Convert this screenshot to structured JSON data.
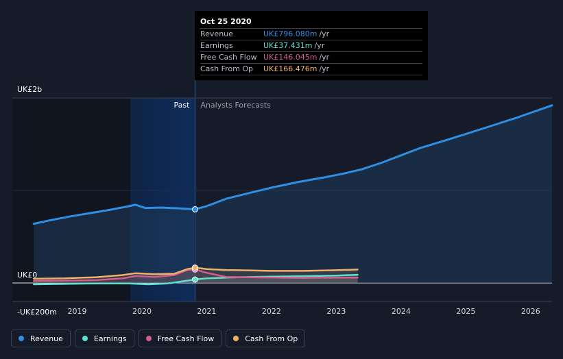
{
  "tooltip": {
    "date": "Oct 25 2020",
    "rows": [
      {
        "name": "Revenue",
        "value": "UK£796.080m",
        "unit": "/yr",
        "color": "#2e8fe4"
      },
      {
        "name": "Earnings",
        "value": "UK£37.431m",
        "unit": "/yr",
        "color": "#5fe0cf"
      },
      {
        "name": "Free Cash Flow",
        "value": "UK£146.045m",
        "unit": "/yr",
        "color": "#d45c8e"
      },
      {
        "name": "Cash From Op",
        "value": "UK£166.476m",
        "unit": "/yr",
        "color": "#f0b16b"
      }
    ]
  },
  "legend": [
    {
      "label": "Revenue",
      "color": "#2e8fe4"
    },
    {
      "label": "Earnings",
      "color": "#5fe0cf"
    },
    {
      "label": "Free Cash Flow",
      "color": "#d45c8e"
    },
    {
      "label": "Cash From Op",
      "color": "#f0b16b"
    }
  ],
  "chart_data": {
    "type": "line",
    "title": "",
    "xlabel": "",
    "ylabel": "",
    "ylim": [
      -200,
      2000
    ],
    "xlim": [
      2018,
      2026.33
    ],
    "y_tick_labels": [
      {
        "value": 2000,
        "label": "UK£2b"
      },
      {
        "value": 0,
        "label": "UK£0"
      },
      {
        "value": -200,
        "label": "-UK£200m"
      }
    ],
    "x_ticks": [
      2019,
      2020,
      2021,
      2022,
      2023,
      2024,
      2025,
      2026
    ],
    "x_tick_labels": [
      "2019",
      "2020",
      "2021",
      "2022",
      "2023",
      "2024",
      "2025",
      "2026"
    ],
    "past_label": "Past",
    "forecast_label": "Analysts Forecasts",
    "divider_x": 2020.82,
    "highlight_start": 2019.82,
    "series": [
      {
        "name": "Revenue",
        "color": "#2e8fe4",
        "x": [
          2018.33,
          2018.6,
          2018.9,
          2019.2,
          2019.5,
          2019.8,
          2019.9,
          2020.05,
          2020.3,
          2020.6,
          2020.82,
          2021.0,
          2021.3,
          2021.7,
          2022.0,
          2022.4,
          2022.8,
          2023.1,
          2023.4,
          2023.7,
          2024.0,
          2024.3,
          2024.7,
          2025.0,
          2025.4,
          2025.8,
          2026.33
        ],
        "y": [
          640,
          680,
          720,
          755,
          790,
          830,
          845,
          810,
          815,
          806,
          796,
          830,
          910,
          980,
          1030,
          1090,
          1140,
          1180,
          1230,
          1300,
          1380,
          1460,
          1545,
          1610,
          1700,
          1790,
          1920
        ]
      },
      {
        "name": "Earnings",
        "color": "#5fe0cf",
        "x": [
          2018.33,
          2018.8,
          2019.3,
          2019.8,
          2020.1,
          2020.4,
          2020.82,
          2021.0,
          2021.5,
          2022.0,
          2022.5,
          2023.0,
          2023.33
        ],
        "y": [
          -15,
          -10,
          -5,
          -5,
          -15,
          -5,
          37,
          50,
          62,
          68,
          73,
          80,
          88
        ]
      },
      {
        "name": "Free Cash Flow",
        "color": "#d45c8e",
        "x": [
          2018.33,
          2018.8,
          2019.3,
          2019.7,
          2019.9,
          2020.2,
          2020.5,
          2020.7,
          2020.82,
          2021.0,
          2021.3,
          2021.7,
          2022.0,
          2022.5,
          2023.0,
          2023.33
        ],
        "y": [
          20,
          25,
          30,
          50,
          75,
          65,
          85,
          140,
          146,
          110,
          65,
          60,
          58,
          55,
          57,
          58
        ]
      },
      {
        "name": "Cash From Op",
        "color": "#f0b16b",
        "x": [
          2018.33,
          2018.8,
          2019.3,
          2019.7,
          2019.9,
          2020.2,
          2020.5,
          2020.7,
          2020.82,
          2021.0,
          2021.3,
          2021.7,
          2022.0,
          2022.5,
          2023.0,
          2023.33
        ],
        "y": [
          45,
          50,
          62,
          85,
          105,
          95,
          100,
          150,
          166,
          150,
          140,
          135,
          130,
          130,
          138,
          145
        ]
      }
    ],
    "tooltip_x": 2020.82
  }
}
